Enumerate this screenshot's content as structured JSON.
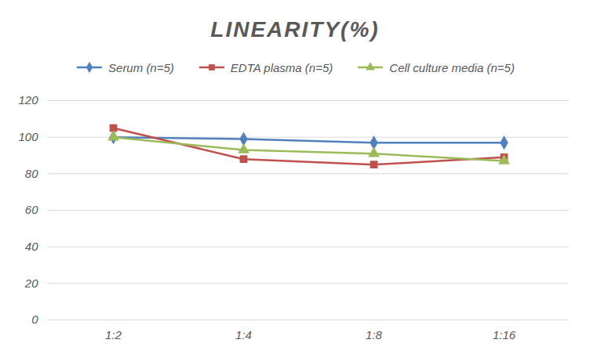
{
  "chart_data": {
    "type": "line",
    "title": "LINEARITY(%)",
    "categories": [
      "1:2",
      "1:4",
      "1:8",
      "1:16"
    ],
    "series": [
      {
        "name": "Serum (n=5)",
        "color": "#4f81bd",
        "marker": "diamond",
        "values": [
          100,
          99,
          97,
          97
        ]
      },
      {
        "name": "EDTA plasma (n=5)",
        "color": "#c0504d",
        "marker": "square",
        "values": [
          105,
          88,
          85,
          89
        ]
      },
      {
        "name": "Cell culture media (n=5)",
        "color": "#9bbb59",
        "marker": "triangle",
        "values": [
          100,
          93,
          91,
          87
        ]
      }
    ],
    "ylim": [
      0,
      120
    ],
    "yticks": [
      0,
      20,
      40,
      60,
      80,
      100,
      120
    ],
    "grid": true,
    "legend": "top"
  }
}
